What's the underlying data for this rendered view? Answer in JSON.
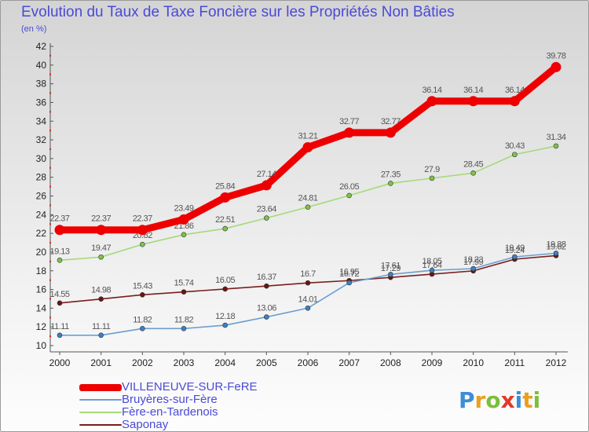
{
  "chart_data": {
    "type": "line",
    "title": "Evolution du Taux de Taxe Foncière sur les Propriétés Non Bâties",
    "subtitle": "(en %)",
    "xlabel": "",
    "ylabel": "",
    "categories": [
      "2000",
      "2001",
      "2002",
      "2003",
      "2004",
      "2005",
      "2006",
      "2007",
      "2008",
      "2009",
      "2010",
      "2011",
      "2012"
    ],
    "ylim": [
      10,
      42
    ],
    "yticks": [
      10,
      12,
      14,
      16,
      18,
      20,
      22,
      24,
      26,
      28,
      30,
      32,
      34,
      36,
      38,
      40,
      42
    ],
    "grid": false,
    "legend_position": "bottom-left",
    "series": [
      {
        "name": "Saponay",
        "color": "#7a1e1e",
        "marker": "#6b1414",
        "values": [
          14.55,
          14.98,
          15.43,
          15.74,
          16.05,
          16.37,
          16.7,
          16.95,
          17.29,
          17.64,
          17.99,
          19.24,
          19.62
        ],
        "labels": [
          "14.55",
          "14.98",
          "15.43",
          "15.74",
          "16.05",
          "16.37",
          "16.7",
          "16.95",
          "17.29",
          "17.64",
          "17.99",
          "19.24",
          "19.62"
        ]
      },
      {
        "name": "Bruyères-sur-Fère",
        "color": "#6a9fd0",
        "marker": "#3f7fc0",
        "values": [
          11.11,
          11.11,
          11.82,
          11.82,
          12.18,
          13.06,
          14.01,
          16.72,
          17.61,
          18.05,
          18.23,
          19.49,
          19.88
        ],
        "labels": [
          "11.11",
          "11.11",
          "11.82",
          "11.82",
          "12.18",
          "13.06",
          "14.01",
          "16.72",
          "17.61",
          "18.05",
          "18.23",
          "19.49",
          "19.88"
        ]
      },
      {
        "name": "Fère-en-Tardenois",
        "color": "#a6d97a",
        "marker": "#80c24a",
        "values": [
          19.13,
          19.47,
          20.82,
          21.86,
          22.51,
          23.64,
          24.81,
          26.05,
          27.35,
          27.9,
          28.45,
          30.43,
          31.34
        ],
        "labels": [
          "19.13",
          "19.47",
          "20.82",
          "21.86",
          "22.51",
          "23.64",
          "24.81",
          "26.05",
          "27.35",
          "27.9",
          "28.45",
          "30.43",
          "31.34"
        ]
      },
      {
        "name": "VILLENEUVE-SUR-FeRE",
        "color": "#ee0000",
        "marker": "#ee0000",
        "values": [
          22.37,
          22.37,
          22.37,
          23.49,
          25.84,
          27.14,
          31.21,
          32.77,
          32.77,
          36.14,
          36.14,
          36.14,
          39.78
        ],
        "labels": [
          "22.37",
          "22.37",
          "22.37",
          "23.49",
          "25.84",
          "27.14",
          "31.21",
          "32.77",
          "32.77",
          "36.14",
          "36.14",
          "36.14",
          "39.78"
        ]
      }
    ],
    "legend_order": [
      "VILLENEUVE-SUR-FeRE",
      "Bruyères-sur-Fère",
      "Fère-en-Tardenois",
      "Saponay"
    ]
  },
  "brand": {
    "letters": [
      "P",
      "r",
      "o",
      "x",
      "i",
      "t",
      "i"
    ],
    "colors": [
      "#3c8ed6",
      "#e8a020",
      "#7bbf3a",
      "#e23a2a",
      "#3c8ed6",
      "#e8a020",
      "#7bbf3a"
    ]
  }
}
